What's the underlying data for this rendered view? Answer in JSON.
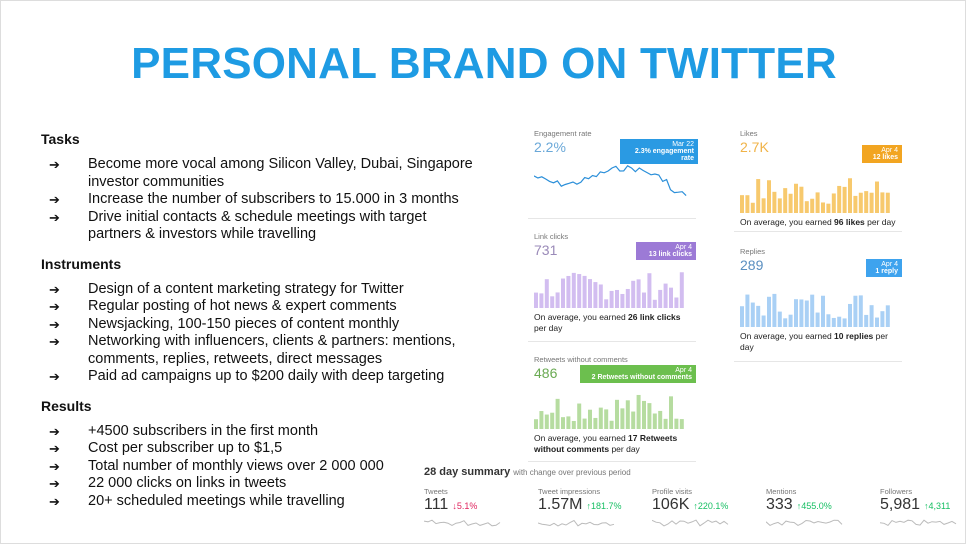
{
  "title": "PERSONAL BRAND ON TWITTER",
  "sections": [
    {
      "heading": "Tasks",
      "items": [
        "Become more vocal among Silicon Valley, Dubai, Singapore investor communities",
        "Increase the number of subscribers to 15.000 in 3 months",
        "Drive initial contacts & schedule meetings with target partners & investors while travelling"
      ]
    },
    {
      "heading": "Instruments",
      "items": [
        "Design of a content marketing strategy for Twitter",
        "Regular posting of hot news & expert comments",
        "Newsjacking, 100-150 pieces of content monthly",
        "Networking with influencers, clients & partners: mentions, comments, replies, retweets, direct messages",
        "Paid ad campaigns up to $200 daily with deep targeting"
      ]
    },
    {
      "heading": "Results",
      "items": [
        "+4500 subscribers in the first month",
        "Cost per subscriber up to $1,5",
        "Total number of monthly views over 2 000 000",
        "22 000 clicks on links in tweets",
        "20+ scheduled meetings while travelling"
      ]
    }
  ],
  "cards": [
    {
      "label": "Engagement rate",
      "value": "2.2%",
      "tip_date": "Mar 22",
      "tip_text": "2.3% engagement rate"
    },
    {
      "label": "Likes",
      "value": "2.7K",
      "tip_date": "Apr 4",
      "tip_text": "12 likes",
      "foot_before": "On average, you earned ",
      "foot_bold": "96 likes",
      "foot_after": " per day"
    },
    {
      "label": "Link clicks",
      "value": "731",
      "tip_date": "Apr 4",
      "tip_text": "13 link clicks",
      "foot_before": "On average, you earned ",
      "foot_bold": "26 link clicks",
      "foot_after": " per day"
    },
    {
      "label": "Replies",
      "value": "289",
      "tip_date": "Apr 4",
      "tip_text": "1 reply",
      "foot_before": "On average, you earned ",
      "foot_bold": "10 replies",
      "foot_after": " per day"
    },
    {
      "label": "Retweets without comments",
      "value": "486",
      "tip_date": "Apr 4",
      "tip_text": "2 Retweets without comments",
      "foot_before": "On average, you earned ",
      "foot_bold": "17 Retweets without comments",
      "foot_after": " per day"
    }
  ],
  "summary": {
    "title": "28 day summary",
    "subtitle": "with change over previous period",
    "metrics": [
      {
        "label": "Tweets",
        "value": "111",
        "change": "↓5.1%"
      },
      {
        "label": "Tweet impressions",
        "value": "1.57M",
        "change": "↑181.7%"
      },
      {
        "label": "Profile visits",
        "value": "106K",
        "change": "↑220.1%"
      },
      {
        "label": "Mentions",
        "value": "333",
        "change": "↑455.0%"
      },
      {
        "label": "Followers",
        "value": "5,981",
        "change": "↑4,311"
      }
    ]
  }
}
